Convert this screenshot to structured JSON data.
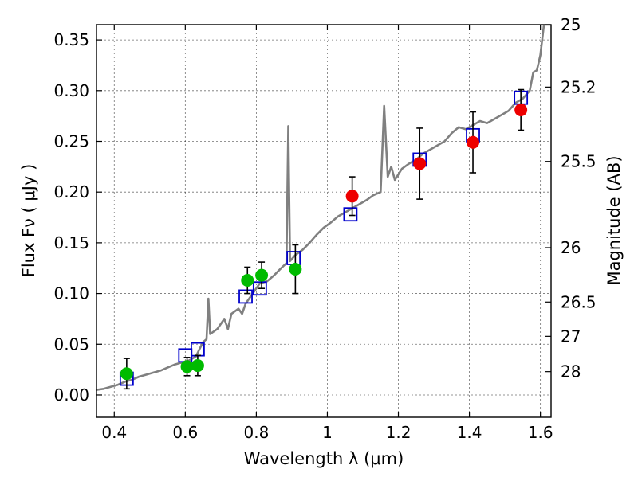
{
  "chart_data": {
    "type": "scatter",
    "title": "",
    "xlabel": "Wavelength  λ (μm)",
    "ylabel": "Flux  Fν  ( μJy )",
    "ylabel_right": "Magnitude (AB)",
    "xlim": [
      0.35,
      1.63
    ],
    "ylim": [
      -0.022,
      0.365
    ],
    "x_ticks": [
      0.4,
      0.6,
      0.8,
      1.0,
      1.2,
      1.4,
      1.6
    ],
    "x_tick_labels": [
      "0.4",
      "0.6",
      "0.8",
      "1",
      "1.2",
      "1.4",
      "1.6"
    ],
    "y_ticks": [
      0.0,
      0.05,
      0.1,
      0.15,
      0.2,
      0.25,
      0.3,
      0.35
    ],
    "y_tick_labels": [
      "0.00",
      "0.05",
      "0.10",
      "0.15",
      "0.20",
      "0.25",
      "0.30",
      "0.35"
    ],
    "right_ticks": [
      {
        "label": "25",
        "flux": 0.365
      },
      {
        "label": "25.2",
        "flux": 0.3035
      },
      {
        "label": "25.5",
        "flux": 0.2302
      },
      {
        "label": "26",
        "flux": 0.1452
      },
      {
        "label": "26.5",
        "flux": 0.0916
      },
      {
        "label": "27",
        "flux": 0.0578
      },
      {
        "label": "28",
        "flux": 0.023
      }
    ],
    "grid": true,
    "series": [
      {
        "kind": "line",
        "color": "#808080",
        "points": [
          [
            0.35,
            0.005
          ],
          [
            0.37,
            0.006
          ],
          [
            0.39,
            0.008
          ],
          [
            0.41,
            0.01
          ],
          [
            0.43,
            0.013
          ],
          [
            0.45,
            0.015
          ],
          [
            0.47,
            0.018
          ],
          [
            0.49,
            0.02
          ],
          [
            0.51,
            0.022
          ],
          [
            0.53,
            0.024
          ],
          [
            0.55,
            0.027
          ],
          [
            0.57,
            0.03
          ],
          [
            0.59,
            0.032
          ],
          [
            0.61,
            0.034
          ],
          [
            0.63,
            0.038
          ],
          [
            0.64,
            0.045
          ],
          [
            0.65,
            0.052
          ],
          [
            0.66,
            0.055
          ],
          [
            0.665,
            0.095
          ],
          [
            0.67,
            0.06
          ],
          [
            0.69,
            0.065
          ],
          [
            0.71,
            0.075
          ],
          [
            0.72,
            0.065
          ],
          [
            0.73,
            0.08
          ],
          [
            0.75,
            0.085
          ],
          [
            0.76,
            0.08
          ],
          [
            0.77,
            0.09
          ],
          [
            0.79,
            0.1
          ],
          [
            0.81,
            0.11
          ],
          [
            0.83,
            0.112
          ],
          [
            0.85,
            0.118
          ],
          [
            0.87,
            0.125
          ],
          [
            0.885,
            0.13
          ],
          [
            0.89,
            0.265
          ],
          [
            0.895,
            0.132
          ],
          [
            0.91,
            0.138
          ],
          [
            0.93,
            0.143
          ],
          [
            0.95,
            0.15
          ],
          [
            0.97,
            0.158
          ],
          [
            0.99,
            0.165
          ],
          [
            1.01,
            0.17
          ],
          [
            1.03,
            0.176
          ],
          [
            1.05,
            0.18
          ],
          [
            1.07,
            0.184
          ],
          [
            1.09,
            0.188
          ],
          [
            1.11,
            0.192
          ],
          [
            1.13,
            0.197
          ],
          [
            1.15,
            0.2
          ],
          [
            1.16,
            0.285
          ],
          [
            1.17,
            0.215
          ],
          [
            1.18,
            0.225
          ],
          [
            1.19,
            0.212
          ],
          [
            1.21,
            0.223
          ],
          [
            1.23,
            0.228
          ],
          [
            1.25,
            0.232
          ],
          [
            1.27,
            0.238
          ],
          [
            1.29,
            0.242
          ],
          [
            1.31,
            0.246
          ],
          [
            1.33,
            0.25
          ],
          [
            1.35,
            0.258
          ],
          [
            1.37,
            0.264
          ],
          [
            1.39,
            0.262
          ],
          [
            1.41,
            0.266
          ],
          [
            1.43,
            0.27
          ],
          [
            1.45,
            0.268
          ],
          [
            1.47,
            0.272
          ],
          [
            1.49,
            0.276
          ],
          [
            1.51,
            0.28
          ],
          [
            1.53,
            0.288
          ],
          [
            1.55,
            0.292
          ],
          [
            1.57,
            0.3
          ],
          [
            1.58,
            0.318
          ],
          [
            1.59,
            0.32
          ],
          [
            1.6,
            0.335
          ],
          [
            1.61,
            0.365
          ],
          [
            1.62,
            0.365
          ],
          [
            1.63,
            0.365
          ]
        ]
      },
      {
        "kind": "open-squares",
        "color": "#0000cc",
        "points": [
          [
            0.435,
            0.016
          ],
          [
            0.6,
            0.039
          ],
          [
            0.635,
            0.045
          ],
          [
            0.77,
            0.097
          ],
          [
            0.81,
            0.105
          ],
          [
            0.905,
            0.135
          ],
          [
            1.065,
            0.178
          ],
          [
            1.26,
            0.232
          ],
          [
            1.41,
            0.256
          ],
          [
            1.545,
            0.293
          ]
        ]
      },
      {
        "kind": "filled-circles",
        "color": "#00bb00",
        "points": [
          {
            "x": 0.435,
            "y": 0.021,
            "yerr": 0.015
          },
          {
            "x": 0.605,
            "y": 0.028,
            "yerr": 0.009
          },
          {
            "x": 0.635,
            "y": 0.029,
            "yerr": 0.01
          },
          {
            "x": 0.775,
            "y": 0.113,
            "yerr": 0.013
          },
          {
            "x": 0.815,
            "y": 0.118,
            "yerr": 0.013
          },
          {
            "x": 0.91,
            "y": 0.124,
            "yerr": 0.024
          }
        ]
      },
      {
        "kind": "filled-circles",
        "color": "#ee0000",
        "points": [
          {
            "x": 1.07,
            "y": 0.196,
            "yerr": 0.019
          },
          {
            "x": 1.26,
            "y": 0.228,
            "yerr": 0.035
          },
          {
            "x": 1.41,
            "y": 0.249,
            "yerr": 0.03
          },
          {
            "x": 1.545,
            "y": 0.281,
            "yerr": 0.02
          }
        ]
      }
    ]
  }
}
